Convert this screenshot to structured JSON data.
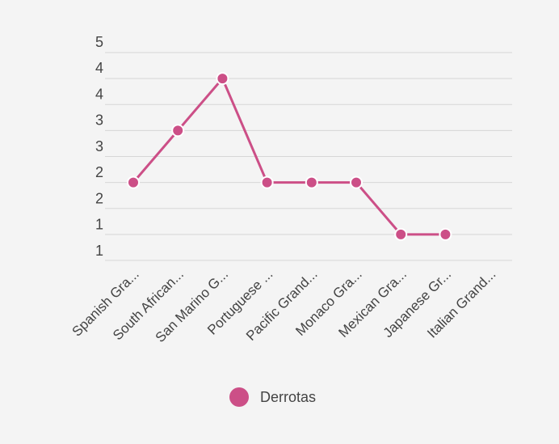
{
  "chart_data": {
    "type": "line",
    "categories": [
      "Spanish Gra...",
      "South African...",
      "San Marino G...",
      "Portuguese ...",
      "Pacific Grand...",
      "Monaco Gra...",
      "Mexican Gra...",
      "Japanese Gr...",
      "Italian Grand..."
    ],
    "series": [
      {
        "name": "Derrotas",
        "values": [
          2,
          3,
          4,
          2,
          2,
          2,
          1,
          1,
          null
        ]
      }
    ],
    "y_tick_labels": [
      "5",
      "4",
      "4",
      "3",
      "3",
      "2",
      "2",
      "1",
      "1"
    ],
    "ylim": [
      0.5,
      4.5
    ],
    "grid": true,
    "legend": "bottom",
    "colors": {
      "series": "#cc4f87",
      "grid": "#d6d6d6",
      "text": "#444444"
    }
  }
}
